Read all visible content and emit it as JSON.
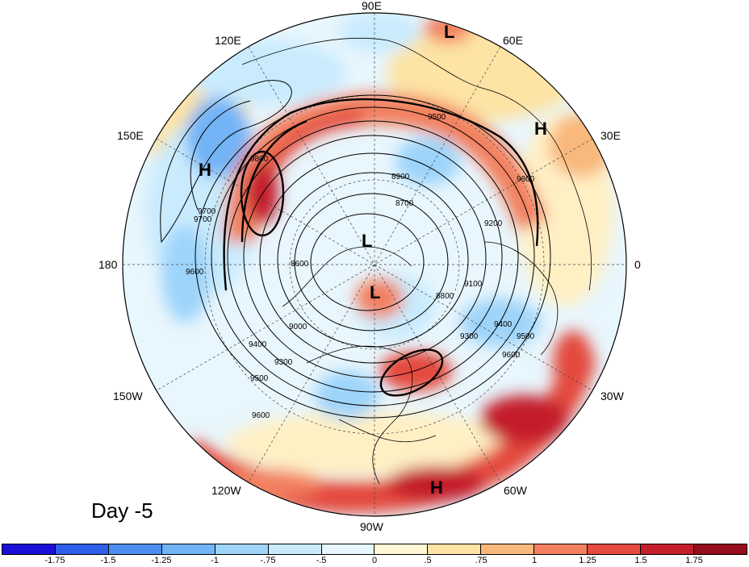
{
  "panel_label": "Day -5",
  "lon_labels": {
    "top": "90E",
    "upper_left": "120E",
    "upper_right": "60E",
    "left_high": "150E",
    "right_high": "30E",
    "left": "180",
    "right": "0",
    "left_low": "150W",
    "right_low": "30W",
    "lower_left": "120W",
    "lower_right": "60W",
    "bottom": "90W"
  },
  "pressure_centers": [
    {
      "label": "L",
      "where": "near 75E"
    },
    {
      "label": "H",
      "where": "Europe"
    },
    {
      "label": "H",
      "where": "NW Pacific"
    },
    {
      "label": "L",
      "where": "Arctic"
    },
    {
      "label": "L",
      "where": "Canadian Arctic"
    },
    {
      "label": "H",
      "where": "Atlantic subtropics"
    }
  ],
  "contour_labels": [
    "9500",
    "9600",
    "9800",
    "9700",
    "8900",
    "8700",
    "8800",
    "9100",
    "9200",
    "9300",
    "9400",
    "8600",
    "9000",
    "9600",
    "9500",
    "9400",
    "9300",
    "9500",
    "9600",
    "9700",
    "9600"
  ],
  "colorbar": {
    "labels": [
      "-1.75",
      "-1.5",
      "-1.25",
      "-1",
      "-.75",
      "-.5",
      "0",
      ".5",
      ".75",
      "1",
      "1.25",
      "1.5",
      "1.75"
    ],
    "colors": [
      "#1a0fd6",
      "#2f5ee8",
      "#4c8ff0",
      "#72b4f6",
      "#9ed4fa",
      "#c9ebfd",
      "#e6f7ff",
      "#fff7d6",
      "#fde3a4",
      "#f9b87c",
      "#f2805e",
      "#e44a3d",
      "#c41f2b",
      "#960d1d"
    ]
  }
}
